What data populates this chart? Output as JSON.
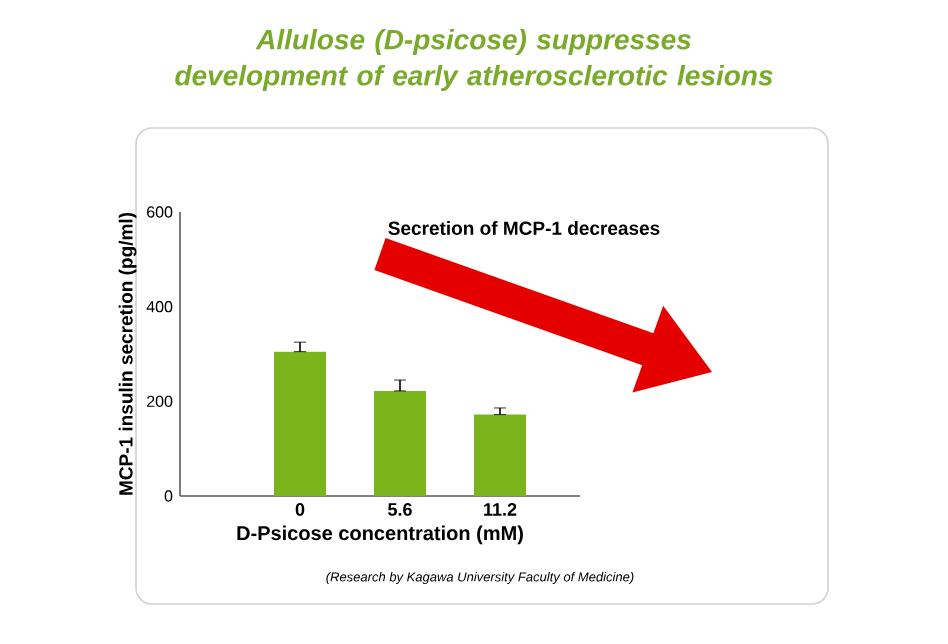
{
  "chart_data": {
    "type": "bar",
    "title": "Allulose (D-psicose) suppresses development of early atherosclerotic lesions",
    "xlabel": "D-Psicose concentration (mM)",
    "ylabel": "MCP-1 insulin secretion (pg/ml)",
    "categories": [
      "0",
      "5.6",
      "11.2"
    ],
    "values": [
      305,
      222,
      172
    ],
    "errors": [
      [
        305,
        325
      ],
      [
        222,
        245
      ],
      [
        172,
        186
      ]
    ],
    "color": "#7ab51d",
    "ylim": [
      0,
      600
    ],
    "yticks": [
      0,
      200,
      400,
      600
    ],
    "annotations": [
      "Secretion of MCP-1 decreases",
      "(Research by Kagawa University Faculty of Medicine)"
    ]
  }
}
